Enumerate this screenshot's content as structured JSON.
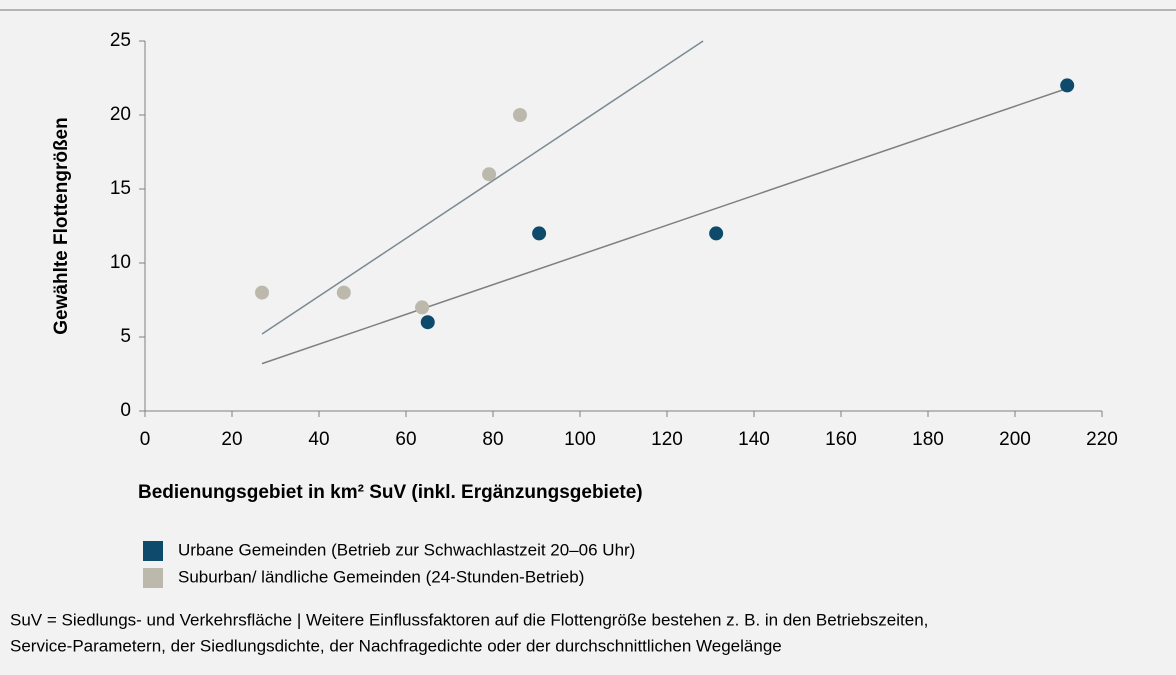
{
  "chart_data": {
    "type": "scatter",
    "xlabel": "Bedienungsgebiet in km² SuV (inkl. Ergänzungsgebiete)",
    "ylabel": "Gewählte Flottengrößen",
    "xlim": [
      0,
      220
    ],
    "xticks": [
      0,
      20,
      40,
      60,
      80,
      100,
      120,
      140,
      160,
      180,
      200,
      220
    ],
    "ylim": [
      0,
      25
    ],
    "yticks": [
      0,
      5,
      10,
      15,
      20,
      25
    ],
    "series": [
      {
        "name": "Urbane Gemeinden (Betrieb zur Schwachlastzeit 20–06 Uhr)",
        "color": "#0d4a6b",
        "x": [
          65,
          90.6,
          131.3,
          212
        ],
        "values": [
          6,
          12,
          12,
          22
        ],
        "trend": {
          "x": [
            26.9,
            212
          ],
          "y": [
            3.2,
            21.8
          ],
          "color": "#7f7f7f"
        }
      },
      {
        "name": "Suburban/ ländliche Gemeinden (24-Stunden-Betrieb)",
        "color": "#bcb9ac",
        "x": [
          26.9,
          45.7,
          63.7,
          79.1,
          86.2
        ],
        "values": [
          8,
          8,
          7,
          16,
          20
        ],
        "trend": {
          "x": [
            26.9,
            128.3
          ],
          "y": [
            5.2,
            25
          ],
          "color": "#7a8a92"
        }
      }
    ],
    "note": [
      "SuV = Siedlungs- und Verkehrsfläche | Weitere Einflussfaktoren auf die Flottengröße bestehen z. B. in den Betriebszeiten,",
      "Service-Parametern, der Siedlungsdichte, der Nachfragedichte oder der durchschnittlichen Wegelänge"
    ]
  }
}
